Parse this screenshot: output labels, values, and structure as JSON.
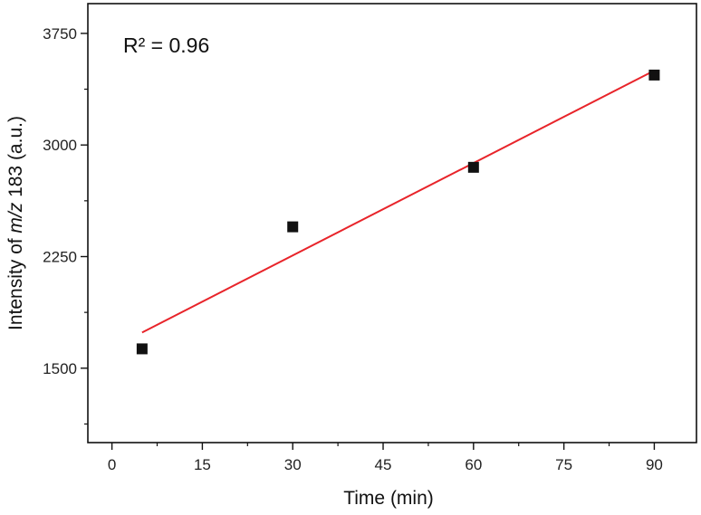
{
  "chart_data": {
    "type": "scatter",
    "title": "",
    "xlabel": "Time (min)",
    "ylabel": {
      "prefix": "Intensity of ",
      "italic": "m/z",
      "suffix": " 183 (a.u.)"
    },
    "xlim": [
      -4,
      97
    ],
    "ylim": [
      1000,
      3950
    ],
    "x_ticks": [
      0,
      15,
      30,
      45,
      60,
      75,
      90
    ],
    "y_ticks": [
      1500,
      2250,
      3000,
      3750
    ],
    "series": [
      {
        "type": "scatter",
        "marker": "square",
        "color": "#111111",
        "x": [
          5,
          30,
          60,
          90
        ],
        "y": [
          1630,
          2450,
          2850,
          3470
        ]
      },
      {
        "type": "line",
        "color": "#e8242a",
        "x": [
          5,
          90
        ],
        "y": [
          1740,
          3500
        ]
      }
    ],
    "annotation": "R² = 0.96",
    "grid": false,
    "legend": "none"
  }
}
